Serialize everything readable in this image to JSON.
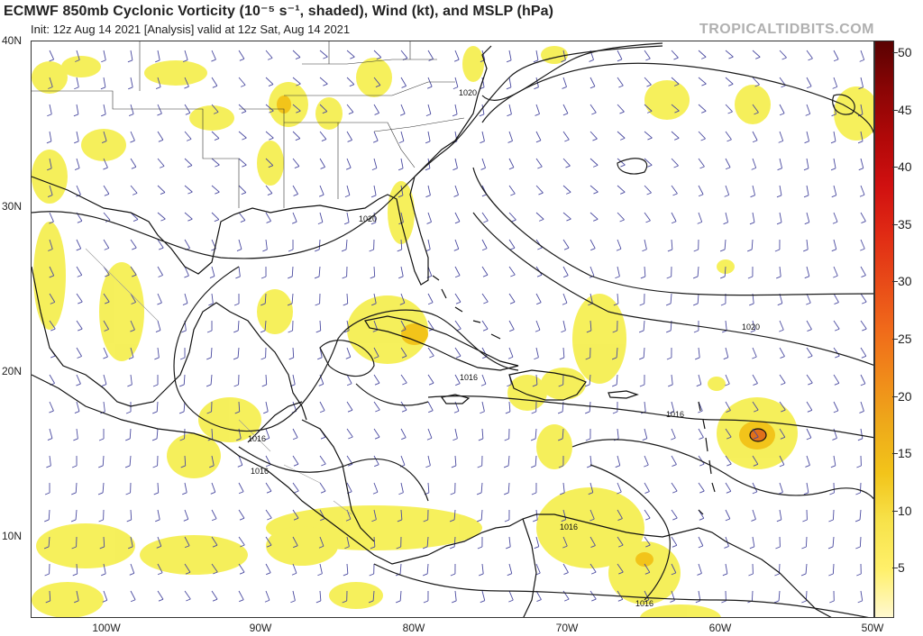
{
  "header": {
    "title": "ECMWF 850mb Cyclonic Vorticity (10⁻⁵ s⁻¹, shaded), Wind (kt), and MSLP (hPa)",
    "subtitle": "Init: 12z Aug 14 2021  [Analysis]  valid at 12z Sat, Aug 14 2021",
    "brand": "TROPICALTIDBITS.COM"
  },
  "map": {
    "lat_labels": [
      "40N",
      "30N",
      "20N",
      "10N"
    ],
    "lon_labels": [
      "100W",
      "90W",
      "80W",
      "70W",
      "60W",
      "50W"
    ],
    "isobar_labels": [
      "1020",
      "1020",
      "1020",
      "1016",
      "1016",
      "1016",
      "1016",
      "1016",
      "1016"
    ],
    "colors": {
      "vort_light": "#f5ee4a",
      "vort_mid": "#f2c41a",
      "vort_core": "#e0701a",
      "barb": "#4a4aa0",
      "isobar": "#1a1a1a",
      "coast": "#111111",
      "border": "#888888"
    }
  },
  "colorbar": {
    "ticks": [
      "50",
      "45",
      "40",
      "35",
      "30",
      "25",
      "20",
      "15",
      "10",
      "5"
    ],
    "colors": [
      "#fff8d0",
      "#fff06a",
      "#f7e24a",
      "#f2c41a",
      "#eeaa1a",
      "#f08a1a",
      "#f06a1a",
      "#e84a18",
      "#e02a14",
      "#d01010",
      "#b00808",
      "#8a0505",
      "#5a0202"
    ]
  }
}
